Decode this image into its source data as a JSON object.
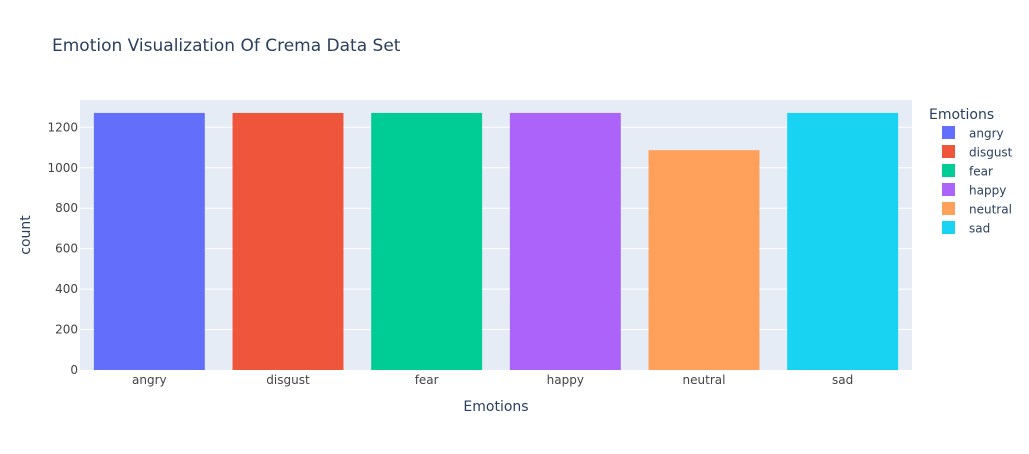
{
  "chart_data": {
    "type": "bar",
    "title": "Emotion Visualization Of Crema Data Set",
    "xlabel": "Emotions",
    "ylabel": "count",
    "categories": [
      "angry",
      "disgust",
      "fear",
      "happy",
      "neutral",
      "sad"
    ],
    "values": [
      1271,
      1271,
      1271,
      1271,
      1087,
      1271
    ],
    "colors": [
      "#636efa",
      "#ef553b",
      "#00cc96",
      "#ab63fa",
      "#ffa15a",
      "#19d3f3"
    ],
    "ylim": [
      0,
      1335
    ],
    "yticks": [
      0,
      200,
      400,
      600,
      800,
      1000,
      1200
    ],
    "grid": true,
    "legend": {
      "title": "Emotions",
      "position": "right",
      "items": [
        "angry",
        "disgust",
        "fear",
        "happy",
        "neutral",
        "sad"
      ]
    },
    "style": {
      "plot_bg": "#e5ecf6",
      "grid_color": "#ffffff",
      "text_color": "#2a3f5f",
      "tick_color": "#444444"
    }
  }
}
